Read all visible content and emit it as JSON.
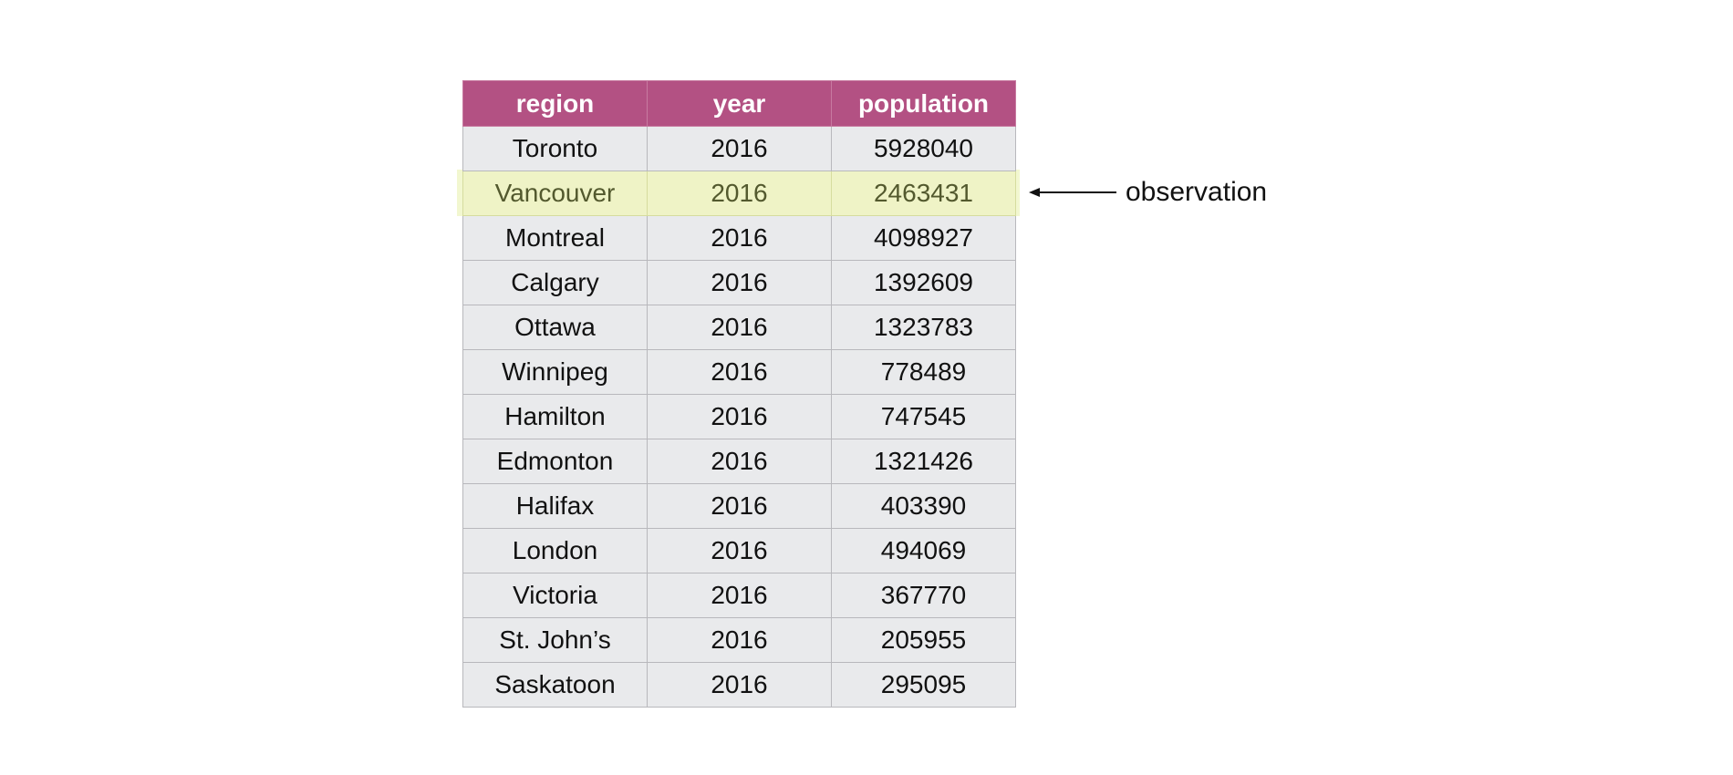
{
  "table": {
    "columns": [
      "region",
      "year",
      "population"
    ],
    "rows": [
      [
        "Toronto",
        "2016",
        "5928040"
      ],
      [
        "Vancouver",
        "2016",
        "2463431"
      ],
      [
        "Montreal",
        "2016",
        "4098927"
      ],
      [
        "Calgary",
        "2016",
        "1392609"
      ],
      [
        "Ottawa",
        "2016",
        "1323783"
      ],
      [
        "Winnipeg",
        "2016",
        "778489"
      ],
      [
        "Hamilton",
        "2016",
        "747545"
      ],
      [
        "Edmonton",
        "2016",
        "1321426"
      ],
      [
        "Halifax",
        "2016",
        "403390"
      ],
      [
        "London",
        "2016",
        "494069"
      ],
      [
        "Victoria",
        "2016",
        "367770"
      ],
      [
        "St. John’s",
        "2016",
        "205955"
      ],
      [
        "Saskatoon",
        "2016",
        "295095"
      ]
    ],
    "highlighted_row": 1
  },
  "annotation": {
    "label": "observation"
  },
  "colors": {
    "header": "#b35183",
    "cell": "#e9eaec",
    "highlight": "#eff3c6"
  }
}
